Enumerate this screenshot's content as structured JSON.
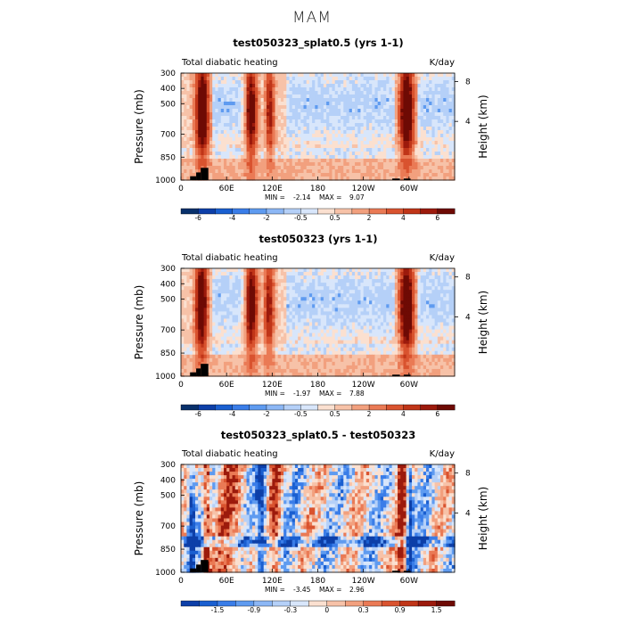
{
  "page": {
    "title": "MAM"
  },
  "colors": {
    "neg": [
      "#08306b",
      "#0d3fa8",
      "#1a5fd0",
      "#3a7de8",
      "#5f9bf0",
      "#8cb7f5",
      "#b5d0f8",
      "#d8e6fb"
    ],
    "pos": [
      "#fbe0d0",
      "#f7c2a8",
      "#f2a07e",
      "#ea7a55",
      "#d9532f",
      "#c03518",
      "#9c1a0c",
      "#6e0a04"
    ],
    "mask": "#000000"
  },
  "chart_data": [
    {
      "type": "heatmap",
      "title": "test050323_splat0.5 (yrs 1-1)",
      "left_label": "Total diabatic heating",
      "units": "K/day",
      "xlabel": "",
      "ylabel": "Pressure (mb)",
      "ylabel_right": "Height (km)",
      "x_ticks": [
        "0",
        "60E",
        "120E",
        "180",
        "120W",
        "60W"
      ],
      "x_tick_lons": [
        0,
        60,
        120,
        180,
        240,
        300
      ],
      "x_range": [
        0,
        360
      ],
      "y_ticks": [
        "300",
        "400",
        "500",
        "700",
        "850",
        "1000"
      ],
      "y_tick_values": [
        300,
        400,
        500,
        700,
        850,
        1000
      ],
      "y_range": [
        300,
        1000
      ],
      "right_ticks": [
        "8",
        "4"
      ],
      "right_tick_pressures": [
        356,
        616
      ],
      "stats": {
        "min_label": "MIN =",
        "min": "-2.14",
        "max_label": "MAX =",
        "max": "9.07"
      },
      "colorbar_labels": [
        "-6",
        "-4",
        "-2",
        "-0.5",
        "0.5",
        "2",
        "4",
        "6"
      ],
      "field": {
        "hot_bands_lon": [
          [
            20,
            36,
            1.0
          ],
          [
            85,
            100,
            0.8
          ],
          [
            112,
            122,
            0.6
          ],
          [
            288,
            306,
            1.0
          ]
        ],
        "cool_regions_lon": [
          [
            40,
            85
          ],
          [
            140,
            280
          ],
          [
            310,
            360
          ]
        ]
      }
    },
    {
      "type": "heatmap",
      "title": "test050323 (yrs 1-1)",
      "left_label": "Total diabatic heating",
      "units": "K/day",
      "xlabel": "",
      "ylabel": "Pressure (mb)",
      "ylabel_right": "Height (km)",
      "x_ticks": [
        "0",
        "60E",
        "120E",
        "180",
        "120W",
        "60W"
      ],
      "x_tick_lons": [
        0,
        60,
        120,
        180,
        240,
        300
      ],
      "x_range": [
        0,
        360
      ],
      "y_ticks": [
        "300",
        "400",
        "500",
        "700",
        "850",
        "1000"
      ],
      "y_tick_values": [
        300,
        400,
        500,
        700,
        850,
        1000
      ],
      "y_range": [
        300,
        1000
      ],
      "right_ticks": [
        "8",
        "4"
      ],
      "right_tick_pressures": [
        356,
        616
      ],
      "stats": {
        "min_label": "MIN =",
        "min": "-1.97",
        "max_label": "MAX =",
        "max": "7.88"
      },
      "colorbar_labels": [
        "-6",
        "-4",
        "-2",
        "-0.5",
        "0.5",
        "2",
        "4",
        "6"
      ],
      "field": {
        "hot_bands_lon": [
          [
            20,
            34,
            1.0
          ],
          [
            85,
            100,
            0.85
          ],
          [
            110,
            122,
            0.6
          ],
          [
            288,
            306,
            1.0
          ]
        ],
        "cool_regions_lon": [
          [
            40,
            85
          ],
          [
            140,
            280
          ],
          [
            310,
            360
          ]
        ]
      }
    },
    {
      "type": "heatmap",
      "title": "test050323_splat0.5 - test050323",
      "left_label": "Total diabatic heating",
      "units": "K/day",
      "xlabel": "",
      "ylabel": "Pressure (mb)",
      "ylabel_right": "Height (km)",
      "x_ticks": [
        "0",
        "60E",
        "120E",
        "180",
        "120W",
        "60W"
      ],
      "x_tick_lons": [
        0,
        60,
        120,
        180,
        240,
        300
      ],
      "x_range": [
        0,
        360
      ],
      "y_ticks": [
        "300",
        "400",
        "500",
        "700",
        "850",
        "1000"
      ],
      "y_tick_values": [
        300,
        400,
        500,
        700,
        850,
        1000
      ],
      "y_range": [
        300,
        1000
      ],
      "right_ticks": [
        "8",
        "4"
      ],
      "right_tick_pressures": [
        356,
        616
      ],
      "stats": {
        "min_label": "MIN =",
        "min": "-3.45",
        "max_label": "MAX =",
        "max": "2.96"
      },
      "colorbar_labels": [
        "-1.5",
        "-0.9",
        "-0.3",
        "0",
        "0.3",
        "0.9",
        "1.5"
      ],
      "field": {
        "diff_bands_lon": [
          [
            10,
            18,
            -1
          ],
          [
            30,
            38,
            1
          ],
          [
            45,
            85,
            0.6
          ],
          [
            100,
            112,
            -1
          ],
          [
            118,
            130,
            0.8
          ],
          [
            285,
            296,
            1
          ],
          [
            298,
            304,
            -1
          ]
        ]
      }
    }
  ]
}
